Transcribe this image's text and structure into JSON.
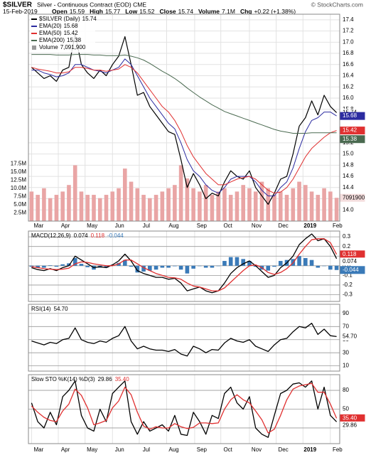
{
  "header": {
    "symbol": "$SILVER",
    "description": "Silver - Continuous Contract (EOD) CME",
    "source": "© StockCharts.com",
    "date": "15-Feb-2019",
    "quote": [
      {
        "label": "Open",
        "value": 15.59
      },
      {
        "label": "High",
        "value": 15.77
      },
      {
        "label": "Low",
        "value": 15.52
      },
      {
        "label": "Close",
        "value": 15.74
      },
      {
        "label": "Volume",
        "value": "7.1M"
      },
      {
        "label": "Chg",
        "value": "+0.22 (+1.38%)"
      }
    ]
  },
  "chart_data": [
    {
      "type": "price",
      "title": "$SILVER (Daily)",
      "grid": true,
      "xlim": [
        -0.5,
        49.5
      ],
      "xticks": [
        {
          "value": 0,
          "label": "Mar"
        },
        {
          "value": 4.3,
          "label": "Apr"
        },
        {
          "value": 8.6,
          "label": "May"
        },
        {
          "value": 13,
          "label": "Jun"
        },
        {
          "value": 17.3,
          "label": "Jul"
        },
        {
          "value": 21.7,
          "label": "Aug"
        },
        {
          "value": 26.2,
          "label": "Sep"
        },
        {
          "value": 30.4,
          "label": "Oct"
        },
        {
          "value": 35,
          "label": "Nov"
        },
        {
          "value": 39.3,
          "label": "Dec"
        },
        {
          "value": 43.6,
          "label": "2019"
        },
        {
          "value": 48,
          "label": "Feb"
        }
      ],
      "ylim": [
        13.8,
        17.5
      ],
      "yticks": [
        {
          "value": 14,
          "label": "14.0"
        },
        14.2,
        14.4,
        14.6,
        14.8,
        {
          "value": 15,
          "label": "15.0"
        },
        15.2,
        15.8,
        {
          "value": 16,
          "label": "16.0"
        },
        16.2,
        16.4,
        16.6,
        16.8,
        {
          "value": 17,
          "label": "17.0"
        },
        17.2,
        17.4
      ],
      "y2lim": [
        0,
        63000000
      ],
      "y2ticks": [
        {
          "value": 2500000,
          "label": "2.5M"
        },
        {
          "value": 5000000,
          "label": "5.0M"
        },
        {
          "value": 7500000,
          "label": "7.5M"
        },
        {
          "value": 10000000,
          "label": "10.0M"
        },
        {
          "value": 12500000,
          "label": "12.5M"
        },
        {
          "value": 15000000,
          "label": "15.0M"
        },
        {
          "value": 17500000,
          "label": "17.5M"
        }
      ],
      "series": [
        {
          "name": "$SILVER (Daily)",
          "color": "#000000",
          "values": [
            16.55,
            16.45,
            16.35,
            16.4,
            16.3,
            16.5,
            16.55,
            17.15,
            16.6,
            16.45,
            16.35,
            16.5,
            16.4,
            16.6,
            16.75,
            17.1,
            16.6,
            16.05,
            16.1,
            15.85,
            15.7,
            15.55,
            15.4,
            15.35,
            14.9,
            14.4,
            14.65,
            14.45,
            14.2,
            14.3,
            14.25,
            14.5,
            14.7,
            14.6,
            14.55,
            14.7,
            14.4,
            14.25,
            14.1,
            14.3,
            14.55,
            14.6,
            15.0,
            15.5,
            15.65,
            15.95,
            15.7,
            16.05,
            15.85,
            15.74
          ]
        },
        {
          "name": "EMA(20)",
          "color": "#2b2ba0",
          "values": [
            16.5,
            16.5,
            16.45,
            16.42,
            16.38,
            16.4,
            16.45,
            16.6,
            16.6,
            16.55,
            16.5,
            16.48,
            16.45,
            16.5,
            16.55,
            16.7,
            16.6,
            16.4,
            16.2,
            16.0,
            15.85,
            15.7,
            15.55,
            15.45,
            15.2,
            14.9,
            14.7,
            14.6,
            14.45,
            14.35,
            14.3,
            14.4,
            14.55,
            14.6,
            14.6,
            14.6,
            14.5,
            14.35,
            14.25,
            14.25,
            14.4,
            14.5,
            14.75,
            15.1,
            15.4,
            15.6,
            15.65,
            15.75,
            15.75,
            15.68
          ]
        },
        {
          "name": "EMA(50)",
          "color": "#e03030",
          "values": [
            16.55,
            16.52,
            16.5,
            16.48,
            16.45,
            16.45,
            16.47,
            16.55,
            16.55,
            16.53,
            16.5,
            16.5,
            16.48,
            16.5,
            16.52,
            16.6,
            16.55,
            16.45,
            16.3,
            16.15,
            16.0,
            15.85,
            15.75,
            15.6,
            15.4,
            15.15,
            14.95,
            14.8,
            14.65,
            14.55,
            14.45,
            14.45,
            14.5,
            14.55,
            14.58,
            14.6,
            14.55,
            14.45,
            14.35,
            14.3,
            14.32,
            14.4,
            14.55,
            14.75,
            14.95,
            15.1,
            15.2,
            15.3,
            15.38,
            15.42
          ]
        },
        {
          "name": "EMA(200)",
          "color": "#4a6a50",
          "values": [
            16.78,
            16.78,
            16.78,
            16.78,
            16.77,
            16.77,
            16.77,
            16.78,
            16.78,
            16.78,
            16.77,
            16.77,
            16.76,
            16.76,
            16.76,
            16.77,
            16.75,
            16.72,
            16.68,
            16.62,
            16.55,
            16.48,
            16.42,
            16.35,
            16.27,
            16.18,
            16.1,
            16.02,
            15.95,
            15.88,
            15.82,
            15.76,
            15.72,
            15.68,
            15.64,
            15.6,
            15.56,
            15.52,
            15.48,
            15.44,
            15.41,
            15.39,
            15.37,
            15.37,
            15.37,
            15.38,
            15.38,
            15.38,
            15.38,
            15.38
          ]
        },
        {
          "name": "Volume",
          "type": "bar",
          "axis": "y2",
          "color": "#e9a5a5",
          "values": [
            9000000,
            8000000,
            10000000,
            7000000,
            8000000,
            9000000,
            11000000,
            17000000,
            9000000,
            8000000,
            8000000,
            7000000,
            8000000,
            9000000,
            10000000,
            16000000,
            12000000,
            10000000,
            8000000,
            7000000,
            8000000,
            9000000,
            10000000,
            11000000,
            17000000,
            13000000,
            10000000,
            9000000,
            11000000,
            8000000,
            9000000,
            10000000,
            8000000,
            9000000,
            11000000,
            10000000,
            9000000,
            12000000,
            10000000,
            8000000,
            9000000,
            8000000,
            10000000,
            12000000,
            11000000,
            9000000,
            8000000,
            10000000,
            9000000,
            7091900
          ],
          "value_labels": [
            null,
            null,
            null,
            null,
            null,
            null,
            null,
            null,
            null,
            null,
            null,
            null,
            null,
            null,
            null,
            null,
            null,
            null,
            null,
            null,
            null,
            null,
            null,
            null,
            null,
            null,
            null,
            null,
            null,
            null,
            null,
            null,
            null,
            null,
            null,
            null,
            null,
            null,
            null,
            null,
            null,
            null,
            null,
            null,
            null,
            null,
            null,
            null,
            null,
            "7,091,900"
          ]
        }
      ]
    },
    {
      "type": "macd",
      "title": "MACD(12,26,9)",
      "grid": true,
      "ylim": [
        -0.37,
        0.36
      ],
      "yticks": [
        -0.3,
        -0.2,
        -0.1,
        {
          "value": 0,
          "label": "0.0"
        },
        0.1,
        0.2,
        0.3
      ],
      "series": [
        {
          "color": "#000000",
          "values": [
            -0.02,
            -0.04,
            -0.05,
            -0.03,
            -0.05,
            -0.02,
            0.0,
            0.1,
            0.06,
            0.02,
            -0.02,
            -0.01,
            -0.02,
            0.01,
            0.05,
            0.12,
            0.05,
            -0.05,
            -0.08,
            -0.1,
            -0.12,
            -0.12,
            -0.14,
            -0.13,
            -0.18,
            -0.26,
            -0.24,
            -0.22,
            -0.26,
            -0.28,
            -0.26,
            -0.18,
            -0.08,
            -0.02,
            0.02,
            0.05,
            0.0,
            -0.06,
            -0.12,
            -0.1,
            -0.02,
            0.03,
            0.1,
            0.22,
            0.28,
            0.33,
            0.26,
            0.28,
            0.2,
            0.074
          ]
        },
        {
          "color": "#e03030",
          "values": [
            -0.01,
            -0.02,
            -0.03,
            -0.035,
            -0.04,
            -0.035,
            -0.025,
            0.02,
            0.04,
            0.035,
            0.02,
            0.01,
            0.0,
            0.0,
            0.02,
            0.06,
            0.06,
            0.02,
            -0.02,
            -0.05,
            -0.08,
            -0.1,
            -0.12,
            -0.125,
            -0.14,
            -0.18,
            -0.21,
            -0.22,
            -0.24,
            -0.26,
            -0.26,
            -0.23,
            -0.17,
            -0.11,
            -0.05,
            0.0,
            0.01,
            -0.02,
            -0.07,
            -0.09,
            -0.07,
            -0.03,
            0.03,
            0.12,
            0.2,
            0.27,
            0.28,
            0.28,
            0.24,
            0.118
          ]
        },
        {
          "type": "bar",
          "color": "#3a7ab8",
          "values": [
            -0.01,
            -0.02,
            -0.02,
            0.005,
            -0.01,
            0.015,
            0.025,
            0.08,
            0.02,
            -0.015,
            -0.04,
            -0.02,
            -0.02,
            0.01,
            0.03,
            0.06,
            -0.01,
            -0.07,
            -0.06,
            -0.05,
            -0.04,
            -0.02,
            -0.02,
            -0.005,
            -0.04,
            -0.08,
            -0.03,
            0.0,
            -0.02,
            -0.02,
            0.0,
            0.05,
            0.09,
            0.09,
            0.07,
            0.05,
            -0.01,
            -0.04,
            -0.05,
            -0.01,
            0.05,
            0.06,
            0.07,
            0.1,
            0.08,
            0.06,
            -0.02,
            0.0,
            -0.04,
            -0.044
          ]
        }
      ]
    },
    {
      "type": "rsi",
      "title": "RSI(14)",
      "grid": true,
      "ylim": [
        2,
        104
      ],
      "yticks": [
        10,
        30,
        50,
        70,
        90
      ],
      "series": [
        {
          "color": "#000000",
          "values": [
            48,
            45,
            42,
            46,
            44,
            50,
            52,
            68,
            50,
            46,
            44,
            48,
            46,
            52,
            56,
            70,
            48,
            36,
            40,
            36,
            34,
            34,
            32,
            35,
            28,
            25,
            40,
            36,
            30,
            35,
            34,
            45,
            52,
            48,
            46,
            50,
            40,
            36,
            32,
            42,
            50,
            52,
            62,
            70,
            68,
            75,
            58,
            66,
            56,
            54.7
          ],
          "value_labels": [
            null,
            null,
            null,
            null,
            null,
            null,
            null,
            null,
            null,
            null,
            null,
            null,
            null,
            null,
            null,
            null,
            null,
            null,
            null,
            null,
            null,
            null,
            null,
            null,
            null,
            null,
            null,
            null,
            null,
            null,
            null,
            null,
            null,
            null,
            null,
            null,
            null,
            null,
            null,
            null,
            null,
            null,
            null,
            null,
            null,
            null,
            null,
            null,
            null,
            "54.70"
          ]
        }
      ]
    },
    {
      "type": "sto",
      "title": "Slow STO %K(14) %D(3)",
      "grid": true,
      "ylim": [
        -5,
        105
      ],
      "yticks": [
        20,
        50,
        80
      ],
      "series": [
        {
          "color": "#000000",
          "values": [
            60,
            30,
            20,
            45,
            25,
            70,
            80,
            95,
            40,
            20,
            15,
            50,
            30,
            75,
            85,
            95,
            30,
            10,
            30,
            15,
            20,
            25,
            15,
            40,
            10,
            8,
            45,
            30,
            10,
            40,
            35,
            75,
            85,
            60,
            50,
            70,
            20,
            10,
            5,
            40,
            75,
            80,
            90,
            92,
            85,
            95,
            50,
            85,
            40,
            29.86
          ]
        },
        {
          "color": "#e03030",
          "values": [
            55,
            45,
            37,
            32,
            30,
            47,
            58,
            82,
            72,
            52,
            25,
            28,
            32,
            52,
            63,
            85,
            73,
            45,
            23,
            18,
            22,
            20,
            20,
            27,
            22,
            19,
            21,
            28,
            28,
            27,
            28,
            50,
            65,
            73,
            65,
            60,
            47,
            33,
            12,
            18,
            40,
            65,
            82,
            87,
            89,
            91,
            77,
            77,
            58,
            35.4
          ],
          "value_labels": [
            null,
            null,
            null,
            null,
            null,
            null,
            null,
            null,
            null,
            null,
            null,
            null,
            null,
            null,
            null,
            null,
            null,
            null,
            null,
            null,
            null,
            null,
            null,
            null,
            null,
            null,
            null,
            null,
            null,
            null,
            null,
            null,
            null,
            null,
            null,
            null,
            null,
            null,
            null,
            null,
            null,
            null,
            null,
            null,
            null,
            null,
            null,
            null,
            null,
            "35.40"
          ]
        }
      ]
    }
  ]
}
